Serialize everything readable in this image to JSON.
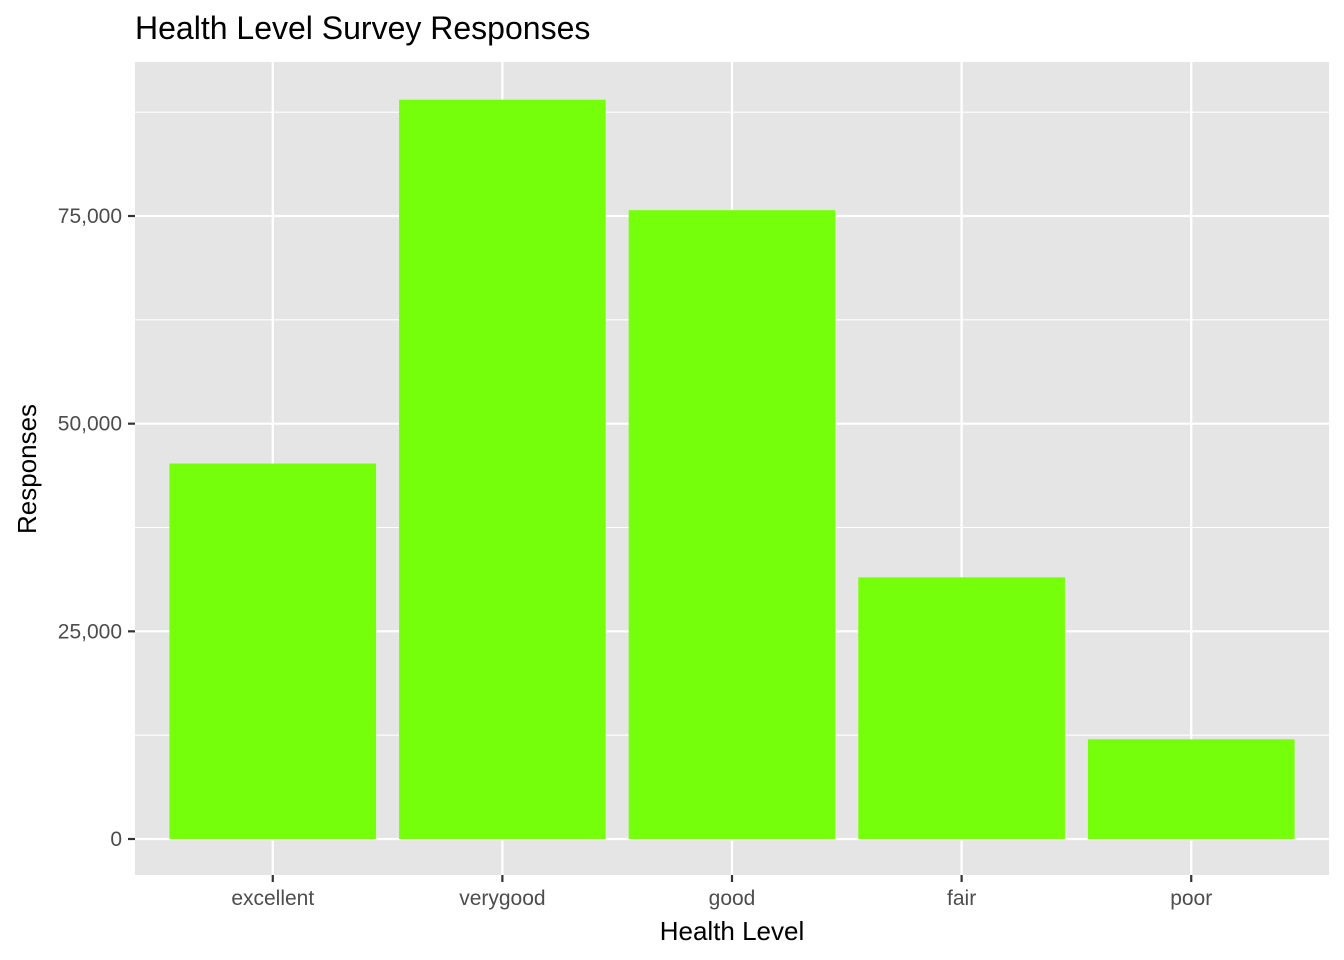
{
  "chart_data": {
    "type": "bar",
    "title": "Health Level Survey Responses",
    "xlabel": "Health Level",
    "ylabel": "Responses",
    "categories": [
      "excellent",
      "verygood",
      "good",
      "fair",
      "poor"
    ],
    "values": [
      45200,
      89000,
      75700,
      31500,
      12000
    ],
    "ylim": [
      0,
      93000
    ],
    "yticks": [
      0,
      25000,
      50000,
      75000
    ],
    "ytick_labels": [
      "0",
      "25,000",
      "50,000",
      "75,000"
    ],
    "bar_color": "#76FF0A",
    "panel_background": "#E5E5E5",
    "gridline_color": "#FFFFFF",
    "grid": true,
    "legend": "none"
  }
}
